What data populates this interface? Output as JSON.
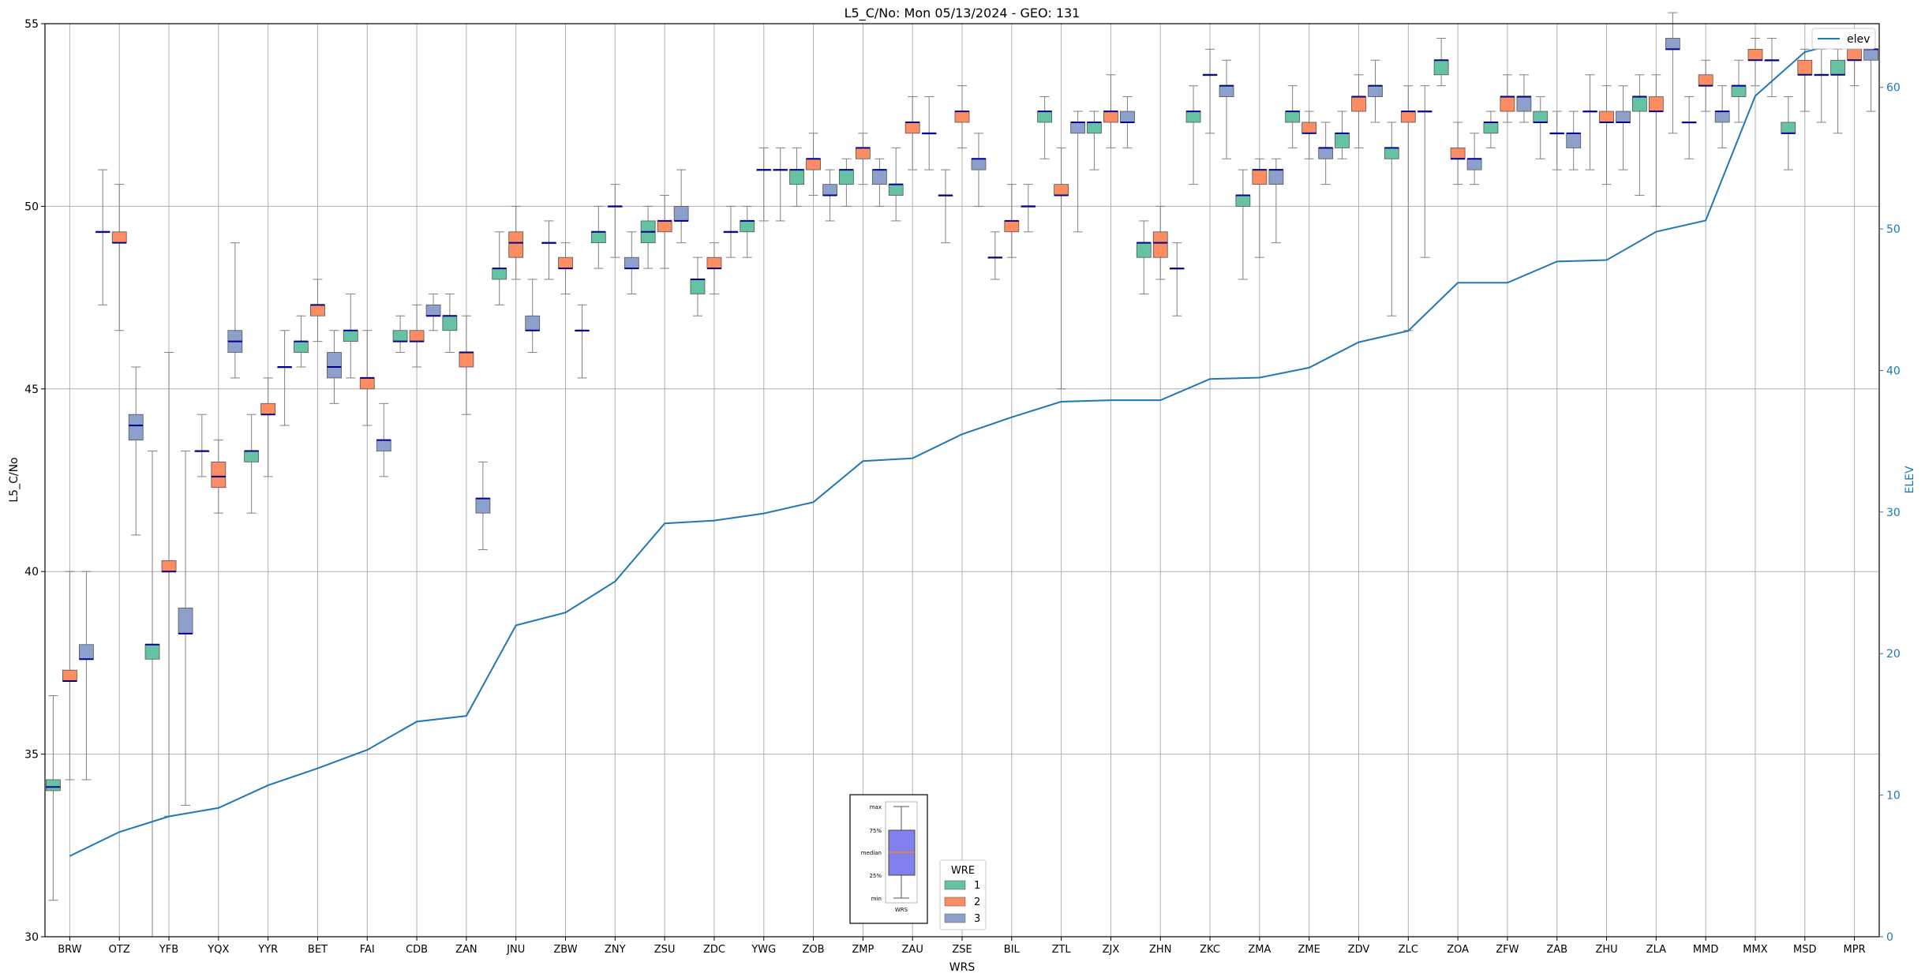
{
  "chart_data": {
    "type": "box",
    "title": "L5_C/No: Mon 05/13/2024 - GEO: 131",
    "xlabel": "WRS",
    "ylabel": "L5_C/No",
    "y2label": "ELEV",
    "ylim": [
      30,
      55
    ],
    "y2lim": [
      0,
      64.5
    ],
    "yticks": [
      30,
      35,
      40,
      45,
      50,
      55
    ],
    "y2ticks": [
      0,
      10,
      20,
      30,
      40,
      50,
      60
    ],
    "grid": true,
    "categories": [
      "BRW",
      "OTZ",
      "YFB",
      "YQX",
      "YYR",
      "BET",
      "FAI",
      "CDB",
      "ZAN",
      "JNU",
      "ZBW",
      "ZNY",
      "ZSU",
      "ZDC",
      "YWG",
      "ZOB",
      "ZMP",
      "ZAU",
      "ZSE",
      "BIL",
      "ZTL",
      "ZJX",
      "ZHN",
      "ZKC",
      "ZMA",
      "ZME",
      "ZDV",
      "ZLC",
      "ZOA",
      "ZFW",
      "ZAB",
      "ZHU",
      "ZLA",
      "MMD",
      "MMX",
      "MSD",
      "MPR"
    ],
    "wre_colors": {
      "1": "#66c2a5",
      "2": "#fc8d62",
      "3": "#8da0cb"
    },
    "median_color": "#00008b",
    "whisker_color": "#808080",
    "elev_color": "#1f77b4",
    "boxes": [
      [
        [
          1,
          31.0,
          34.0,
          34.1,
          34.3,
          36.6
        ],
        [
          2,
          34.3,
          37.0,
          37.0,
          37.3,
          40.0
        ],
        [
          3,
          34.3,
          37.6,
          37.6,
          38.0,
          40.0
        ]
      ],
      [
        [
          1,
          47.3,
          49.3,
          49.3,
          49.3,
          51.0
        ],
        [
          2,
          46.6,
          49.0,
          49.0,
          49.3,
          50.6
        ],
        [
          3,
          41.0,
          43.6,
          44.0,
          44.3,
          45.6
        ]
      ],
      [
        [
          1,
          30.0,
          37.6,
          38.0,
          38.0,
          43.3
        ],
        [
          2,
          33.3,
          40.0,
          40.0,
          40.3,
          46.0
        ],
        [
          3,
          33.6,
          38.3,
          38.3,
          39.0,
          43.3
        ]
      ],
      [
        [
          1,
          42.6,
          43.3,
          43.3,
          43.3,
          44.3
        ],
        [
          2,
          41.6,
          42.3,
          42.6,
          43.0,
          43.6
        ],
        [
          3,
          45.3,
          46.0,
          46.3,
          46.6,
          49.0
        ]
      ],
      [
        [
          1,
          41.6,
          43.0,
          43.3,
          43.3,
          44.3
        ],
        [
          2,
          42.6,
          44.3,
          44.3,
          44.6,
          45.3
        ],
        [
          3,
          44.0,
          45.6,
          45.6,
          45.6,
          46.6
        ]
      ],
      [
        [
          1,
          45.6,
          46.0,
          46.3,
          46.3,
          47.0
        ],
        [
          2,
          46.3,
          47.0,
          47.3,
          47.3,
          48.0
        ],
        [
          3,
          44.6,
          45.3,
          45.6,
          46.0,
          46.6
        ]
      ],
      [
        [
          1,
          45.3,
          46.3,
          46.6,
          46.6,
          47.6
        ],
        [
          2,
          44.0,
          45.0,
          45.3,
          45.3,
          46.6
        ],
        [
          3,
          42.6,
          43.3,
          43.6,
          43.6,
          44.6
        ]
      ],
      [
        [
          1,
          46.0,
          46.3,
          46.3,
          46.6,
          47.0
        ],
        [
          2,
          45.6,
          46.3,
          46.3,
          46.6,
          47.3
        ],
        [
          3,
          46.6,
          47.0,
          47.0,
          47.3,
          47.6
        ]
      ],
      [
        [
          1,
          46.0,
          46.6,
          47.0,
          47.0,
          47.6
        ],
        [
          2,
          44.3,
          45.6,
          46.0,
          46.0,
          47.0
        ],
        [
          3,
          40.6,
          41.6,
          42.0,
          42.0,
          43.0
        ]
      ],
      [
        [
          1,
          47.3,
          48.0,
          48.3,
          48.3,
          49.3
        ],
        [
          2,
          48.0,
          48.6,
          49.0,
          49.3,
          50.0
        ],
        [
          3,
          46.0,
          46.6,
          46.6,
          47.0,
          48.0
        ]
      ],
      [
        [
          1,
          48.0,
          49.0,
          49.0,
          49.0,
          49.6
        ],
        [
          2,
          47.6,
          48.3,
          48.3,
          48.6,
          49.0
        ],
        [
          3,
          45.3,
          46.6,
          46.6,
          46.6,
          47.3
        ]
      ],
      [
        [
          1,
          48.3,
          49.0,
          49.3,
          49.3,
          50.0
        ],
        [
          2,
          48.6,
          50.0,
          50.0,
          50.0,
          50.6
        ],
        [
          3,
          47.6,
          48.3,
          48.3,
          48.6,
          49.3
        ]
      ],
      [
        [
          1,
          48.3,
          49.0,
          49.3,
          49.6,
          50.0
        ],
        [
          2,
          48.3,
          49.3,
          49.6,
          49.6,
          50.3
        ],
        [
          3,
          49.0,
          49.6,
          49.6,
          50.0,
          51.0
        ]
      ],
      [
        [
          1,
          47.0,
          47.6,
          48.0,
          48.0,
          48.6
        ],
        [
          2,
          47.6,
          48.3,
          48.3,
          48.6,
          49.0
        ],
        [
          3,
          48.6,
          49.3,
          49.3,
          49.3,
          50.0
        ]
      ],
      [
        [
          1,
          48.6,
          49.3,
          49.6,
          49.6,
          50.0
        ],
        [
          2,
          49.6,
          51.0,
          51.0,
          51.0,
          51.6
        ],
        [
          3,
          49.6,
          51.0,
          51.0,
          51.0,
          51.6
        ]
      ],
      [
        [
          1,
          50.0,
          50.6,
          51.0,
          51.0,
          51.6
        ],
        [
          2,
          50.3,
          51.0,
          51.3,
          51.3,
          52.0
        ],
        [
          3,
          49.6,
          50.3,
          50.3,
          50.6,
          51.0
        ]
      ],
      [
        [
          1,
          50.0,
          50.6,
          51.0,
          51.0,
          51.3
        ],
        [
          2,
          50.6,
          51.3,
          51.6,
          51.6,
          52.0
        ],
        [
          3,
          50.0,
          50.6,
          51.0,
          51.0,
          51.3
        ]
      ],
      [
        [
          1,
          49.6,
          50.3,
          50.6,
          50.6,
          51.6
        ],
        [
          2,
          51.0,
          52.0,
          52.3,
          52.3,
          53.0
        ],
        [
          3,
          51.0,
          52.0,
          52.0,
          52.0,
          53.0
        ]
      ],
      [
        [
          1,
          49.0,
          50.3,
          50.3,
          50.3,
          51.0
        ],
        [
          2,
          51.6,
          52.3,
          52.6,
          52.6,
          53.3
        ],
        [
          3,
          50.0,
          51.0,
          51.3,
          51.3,
          52.0
        ]
      ],
      [
        [
          1,
          48.0,
          48.6,
          48.6,
          48.6,
          49.3
        ],
        [
          2,
          48.6,
          49.3,
          49.6,
          49.6,
          50.6
        ],
        [
          3,
          49.3,
          50.0,
          50.0,
          50.0,
          50.6
        ]
      ],
      [
        [
          1,
          51.3,
          52.3,
          52.6,
          52.6,
          53.0
        ],
        [
          2,
          45.0,
          50.3,
          50.3,
          50.6,
          51.6
        ],
        [
          3,
          49.3,
          52.0,
          52.3,
          52.3,
          52.6
        ]
      ],
      [
        [
          1,
          51.0,
          52.0,
          52.3,
          52.3,
          52.6
        ],
        [
          2,
          51.6,
          52.3,
          52.6,
          52.6,
          53.6
        ],
        [
          3,
          51.6,
          52.3,
          52.3,
          52.6,
          53.0
        ]
      ],
      [
        [
          1,
          47.6,
          48.6,
          49.0,
          49.0,
          49.6
        ],
        [
          2,
          48.0,
          48.6,
          49.0,
          49.3,
          50.0
        ],
        [
          3,
          47.0,
          48.3,
          48.3,
          48.3,
          49.0
        ]
      ],
      [
        [
          1,
          50.6,
          52.3,
          52.6,
          52.6,
          53.3
        ],
        [
          2,
          52.0,
          53.6,
          53.6,
          53.6,
          54.3
        ],
        [
          3,
          51.3,
          53.0,
          53.3,
          53.3,
          54.0
        ]
      ],
      [
        [
          1,
          48.0,
          50.0,
          50.3,
          50.3,
          51.0
        ],
        [
          2,
          48.6,
          50.6,
          51.0,
          51.0,
          51.3
        ],
        [
          3,
          49.0,
          50.6,
          51.0,
          51.0,
          51.3
        ]
      ],
      [
        [
          1,
          51.6,
          52.3,
          52.6,
          52.6,
          53.3
        ],
        [
          2,
          51.3,
          52.0,
          52.0,
          52.3,
          52.6
        ],
        [
          3,
          50.6,
          51.3,
          51.6,
          51.6,
          52.3
        ]
      ],
      [
        [
          1,
          51.3,
          51.6,
          52.0,
          52.0,
          52.6
        ],
        [
          2,
          51.6,
          52.6,
          53.0,
          53.0,
          53.6
        ],
        [
          3,
          52.3,
          53.0,
          53.3,
          53.3,
          54.0
        ]
      ],
      [
        [
          1,
          47.0,
          51.3,
          51.6,
          51.6,
          52.3
        ],
        [
          2,
          46.6,
          52.3,
          52.6,
          52.6,
          53.3
        ],
        [
          3,
          48.6,
          52.6,
          52.6,
          52.6,
          53.3
        ]
      ],
      [
        [
          1,
          53.3,
          53.6,
          54.0,
          54.0,
          54.6
        ],
        [
          2,
          50.6,
          51.3,
          51.3,
          51.6,
          52.3
        ],
        [
          3,
          50.6,
          51.0,
          51.3,
          51.3,
          52.0
        ]
      ],
      [
        [
          1,
          51.6,
          52.0,
          52.3,
          52.3,
          52.6
        ],
        [
          2,
          52.3,
          52.6,
          53.0,
          53.0,
          53.6
        ],
        [
          3,
          52.3,
          52.6,
          53.0,
          53.0,
          53.6
        ]
      ],
      [
        [
          1,
          51.3,
          52.3,
          52.3,
          52.6,
          53.0
        ],
        [
          2,
          51.0,
          52.0,
          52.0,
          52.0,
          52.6
        ],
        [
          3,
          51.0,
          51.6,
          52.0,
          52.0,
          52.6
        ]
      ],
      [
        [
          1,
          51.0,
          52.6,
          52.6,
          52.6,
          53.6
        ],
        [
          2,
          50.6,
          52.3,
          52.3,
          52.6,
          53.3
        ],
        [
          3,
          51.0,
          52.3,
          52.3,
          52.6,
          53.3
        ]
      ],
      [
        [
          1,
          50.3,
          52.6,
          53.0,
          53.0,
          53.6
        ],
        [
          2,
          50.0,
          52.6,
          52.6,
          53.0,
          53.6
        ],
        [
          3,
          52.0,
          54.3,
          54.3,
          54.6,
          55.3
        ]
      ],
      [
        [
          1,
          51.3,
          52.3,
          52.3,
          52.3,
          53.0
        ],
        [
          2,
          52.6,
          53.3,
          53.3,
          53.6,
          54.0
        ],
        [
          3,
          51.6,
          52.3,
          52.6,
          52.6,
          53.3
        ]
      ],
      [
        [
          1,
          52.3,
          53.0,
          53.3,
          53.3,
          54.0
        ],
        [
          2,
          53.3,
          54.0,
          54.0,
          54.3,
          54.6
        ],
        [
          3,
          53.0,
          54.0,
          54.0,
          54.0,
          54.6
        ]
      ],
      [
        [
          1,
          51.0,
          52.0,
          52.0,
          52.3,
          53.0
        ],
        [
          2,
          52.6,
          53.6,
          53.6,
          54.0,
          54.3
        ],
        [
          3,
          52.3,
          53.6,
          53.6,
          53.6,
          54.3
        ]
      ],
      [
        [
          1,
          52.0,
          53.6,
          53.6,
          54.0,
          54.3
        ],
        [
          2,
          53.3,
          54.0,
          54.0,
          54.3,
          54.6
        ],
        [
          3,
          52.6,
          54.0,
          54.3,
          54.3,
          54.6
        ]
      ]
    ],
    "elev_series": {
      "name": "elev",
      "values": [
        5.7,
        7.4,
        8.5,
        9.1,
        10.7,
        11.9,
        13.2,
        15.2,
        15.6,
        22.0,
        22.9,
        25.1,
        29.2,
        29.4,
        29.9,
        30.7,
        33.6,
        33.8,
        35.5,
        36.7,
        37.8,
        37.9,
        37.9,
        39.4,
        39.5,
        40.2,
        42.0,
        42.8,
        46.2,
        46.2,
        47.7,
        47.8,
        49.8,
        50.6,
        59.4,
        62.5,
        63.4
      ]
    },
    "legend": {
      "title": "WRE",
      "items": [
        "1",
        "2",
        "3"
      ]
    },
    "key_box": {
      "labels": [
        "max",
        "75%",
        "median",
        "25%",
        "min"
      ],
      "xlabel": "WRS",
      "fill": "#8080ee",
      "median_color": "#ff7f0e"
    },
    "elev_legend_label": "elev"
  }
}
